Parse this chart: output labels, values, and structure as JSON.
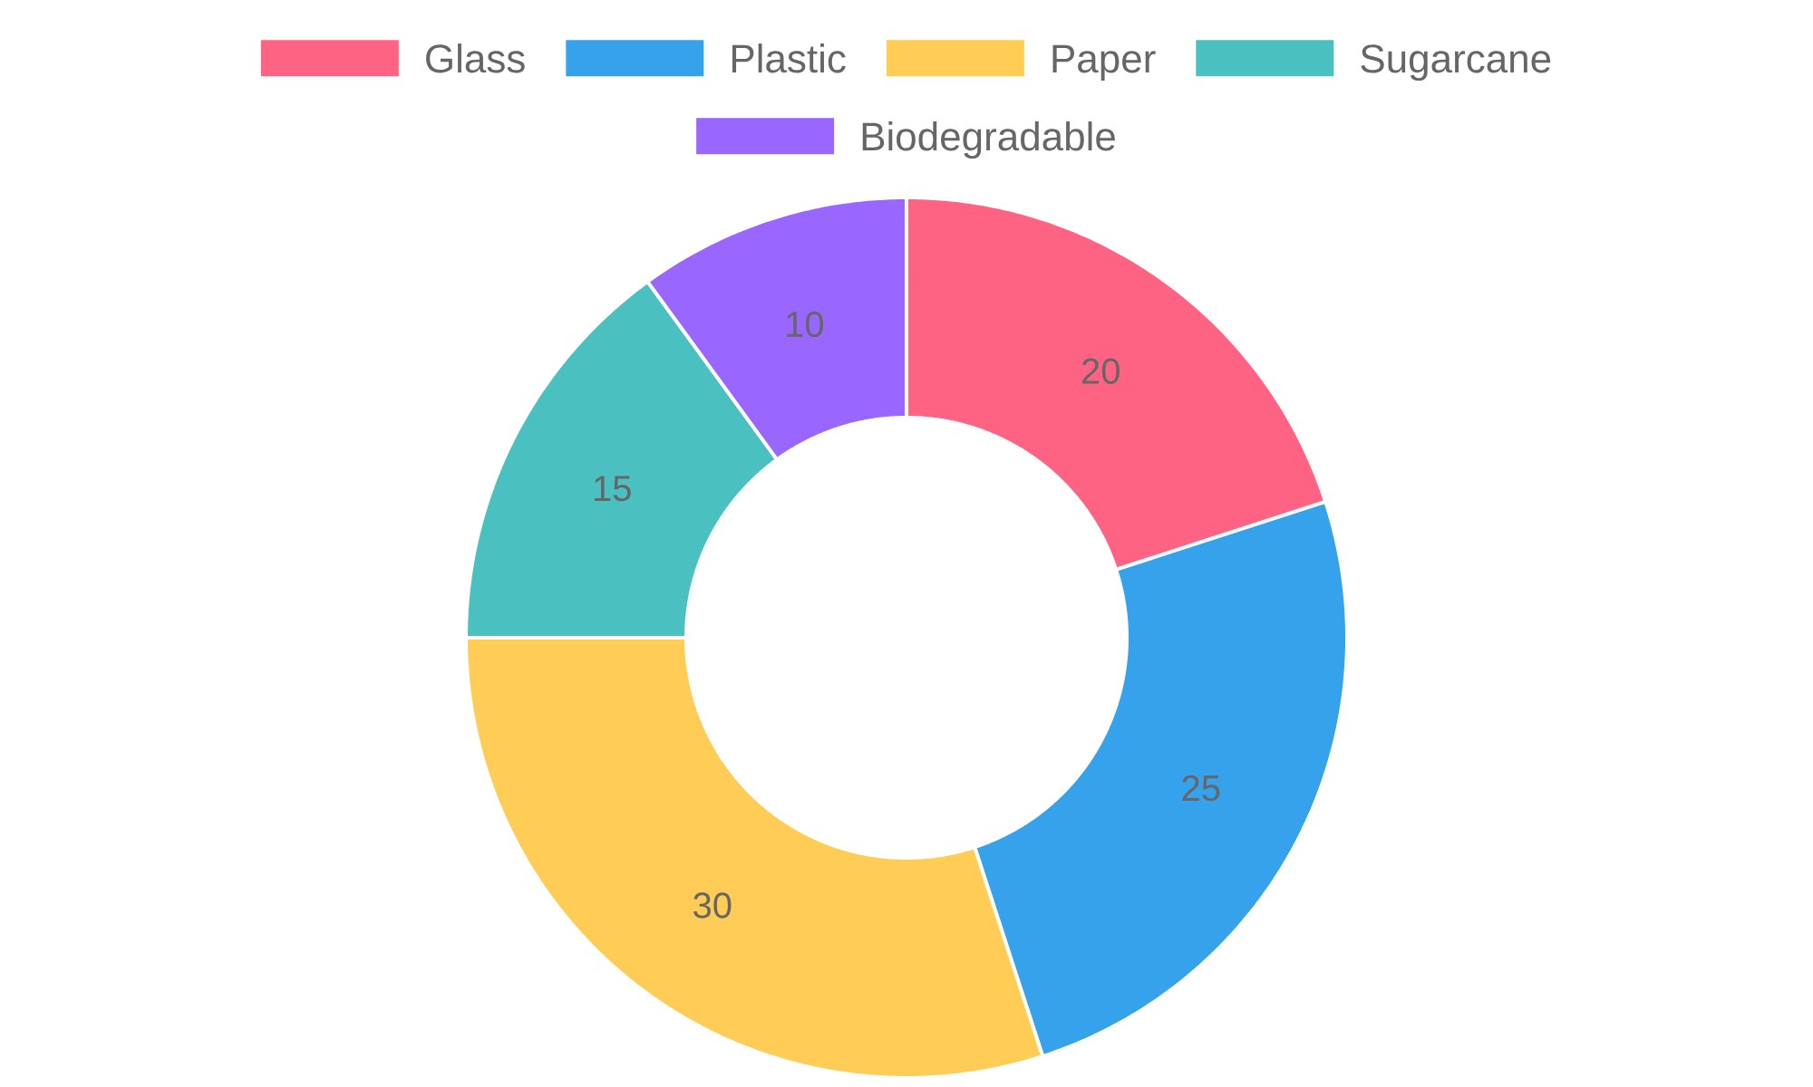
{
  "chart_data": {
    "type": "donut",
    "categories": [
      "Glass",
      "Plastic",
      "Paper",
      "Sugarcane",
      "Biodegradable"
    ],
    "values": [
      20,
      25,
      30,
      15,
      10
    ],
    "colors": [
      "#ff6384",
      "#36a2eb",
      "#ffcd56",
      "#4bc0c0",
      "#9966ff"
    ],
    "legend": "top",
    "data_labels": true
  }
}
